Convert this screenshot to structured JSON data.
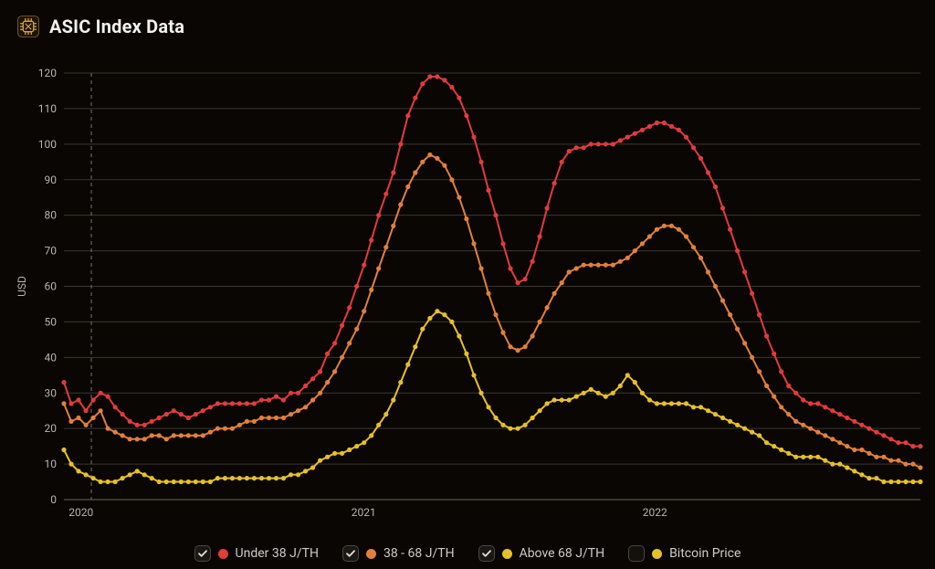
{
  "header": {
    "title": "ASIC Index Data",
    "icon_fg": "#d9a441",
    "icon_bg": "#1c140a"
  },
  "chart": {
    "type": "line",
    "background": "#0a0603",
    "grid_color": "#3a3631",
    "axis_text_color": "#b8b4af",
    "ylabel": "USD",
    "ylim_min": 0,
    "ylim_max": 120,
    "ytick_step": 10,
    "x_ticks": [
      {
        "x": 0.02,
        "label": "2020"
      },
      {
        "x": 0.35,
        "label": "2021"
      },
      {
        "x": 0.69,
        "label": "2022"
      }
    ],
    "cursor_x": 0.032,
    "marker_radius": 2.6,
    "line_width": 2,
    "series": [
      {
        "name": "Under 38 J/TH",
        "color": "#e03c3c",
        "checked": true,
        "points": [
          33,
          27,
          28,
          25,
          28,
          30,
          29,
          26,
          24,
          22,
          21,
          21,
          22,
          23,
          24,
          25,
          24,
          23,
          24,
          25,
          26,
          27,
          27,
          27,
          27,
          27,
          27,
          28,
          28,
          29,
          28,
          30,
          30,
          32,
          34,
          36,
          41,
          44,
          49,
          54,
          60,
          66,
          73,
          80,
          86,
          92,
          100,
          108,
          113,
          117,
          119,
          119,
          118,
          116,
          113,
          108,
          102,
          95,
          87,
          80,
          72,
          65,
          61,
          62,
          67,
          74,
          82,
          89,
          95,
          98,
          99,
          99,
          100,
          100,
          100,
          100,
          101,
          102,
          103,
          104,
          105,
          106,
          106,
          105,
          104,
          102,
          99,
          96,
          92,
          88,
          82,
          76,
          70,
          64,
          58,
          52,
          46,
          41,
          36,
          32,
          30,
          28,
          27,
          27,
          26,
          25,
          24,
          23,
          22,
          21,
          20,
          19,
          18,
          17,
          16,
          16,
          15,
          15
        ]
      },
      {
        "name": "38 - 68 J/TH",
        "color": "#e0803c",
        "checked": true,
        "points": [
          27,
          22,
          23,
          21,
          23,
          25,
          20,
          19,
          18,
          17,
          17,
          17,
          18,
          18,
          17,
          18,
          18,
          18,
          18,
          18,
          19,
          20,
          20,
          20,
          21,
          22,
          22,
          23,
          23,
          23,
          23,
          24,
          25,
          26,
          28,
          30,
          33,
          36,
          40,
          44,
          48,
          53,
          59,
          65,
          71,
          77,
          83,
          88,
          92,
          95,
          97,
          96,
          94,
          90,
          85,
          79,
          72,
          65,
          58,
          52,
          47,
          43,
          42,
          43,
          46,
          50,
          54,
          58,
          61,
          64,
          65,
          66,
          66,
          66,
          66,
          66,
          67,
          68,
          70,
          72,
          74,
          76,
          77,
          77,
          76,
          74,
          71,
          68,
          64,
          60,
          56,
          52,
          48,
          44,
          40,
          36,
          32,
          29,
          26,
          24,
          22,
          21,
          20,
          19,
          18,
          17,
          16,
          15,
          14,
          14,
          13,
          12,
          12,
          11,
          11,
          10,
          10,
          9
        ]
      },
      {
        "name": "Above 68 J/TH",
        "color": "#e6c02a",
        "checked": true,
        "points": [
          14,
          10,
          8,
          7,
          6,
          5,
          5,
          5,
          6,
          7,
          8,
          7,
          6,
          5,
          5,
          5,
          5,
          5,
          5,
          5,
          5,
          6,
          6,
          6,
          6,
          6,
          6,
          6,
          6,
          6,
          6,
          7,
          7,
          8,
          9,
          11,
          12,
          13,
          13,
          14,
          15,
          16,
          18,
          21,
          24,
          28,
          33,
          38,
          43,
          48,
          51,
          53,
          52,
          50,
          46,
          41,
          35,
          30,
          26,
          23,
          21,
          20,
          20,
          21,
          23,
          25,
          27,
          28,
          28,
          28,
          29,
          30,
          31,
          30,
          29,
          30,
          32,
          35,
          33,
          30,
          28,
          27,
          27,
          27,
          27,
          27,
          26,
          26,
          25,
          24,
          23,
          22,
          21,
          20,
          19,
          18,
          16,
          15,
          14,
          13,
          12,
          12,
          12,
          12,
          11,
          10,
          10,
          9,
          8,
          7,
          6,
          6,
          5,
          5,
          5,
          5,
          5,
          5
        ]
      },
      {
        "name": "Bitcoin Price",
        "color": "#e6c02a",
        "checked": false,
        "points": []
      }
    ]
  },
  "legend": {
    "checkmark_color": "#e2ded9"
  }
}
